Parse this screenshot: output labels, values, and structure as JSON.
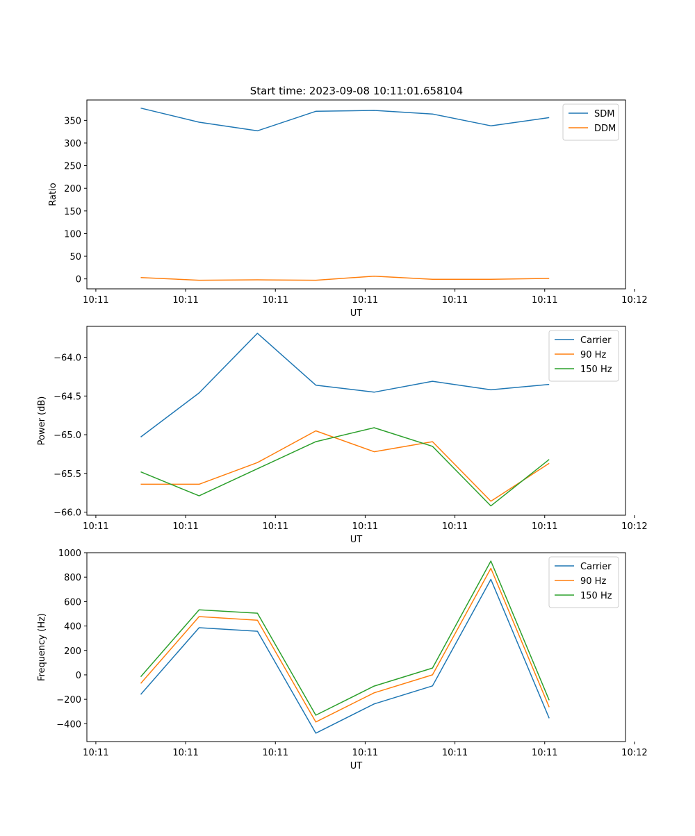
{
  "figure_title": "Start time: 2023-09-08 10:11:01.658104",
  "chart_data": [
    {
      "type": "line",
      "title": "Start time: 2023-09-08 10:11:01.658104",
      "xlabel": "UT",
      "ylabel": "Ratio",
      "xlim": [
        0,
        6
      ],
      "xticks": [
        0.1,
        1.1,
        2.1,
        3.1,
        4.1,
        5.1,
        6.1
      ],
      "xtick_labels": [
        "10:11",
        "10:11",
        "10:11",
        "10:11",
        "10:11",
        "10:11",
        "10:12"
      ],
      "ylim": [
        -22,
        395
      ],
      "yticks": [
        0,
        50,
        100,
        150,
        200,
        250,
        300,
        350
      ],
      "ytick_labels": [
        "0",
        "50",
        "100",
        "150",
        "200",
        "250",
        "300",
        "350"
      ],
      "legend": "top-right",
      "x": [
        0.6,
        1.25,
        1.9,
        2.55,
        3.2,
        3.85,
        4.5,
        5.15
      ],
      "series": [
        {
          "name": "SDM",
          "color": "#1f77b4",
          "values": [
            377,
            346,
            327,
            370,
            372,
            364,
            338,
            356
          ]
        },
        {
          "name": "DDM",
          "color": "#ff7f0e",
          "values": [
            3,
            -3,
            -2,
            -3,
            6,
            -1,
            -1,
            1
          ]
        }
      ]
    },
    {
      "type": "line",
      "title": "",
      "xlabel": "UT",
      "ylabel": "Power (dB)",
      "xlim": [
        0,
        6
      ],
      "xticks": [
        0.1,
        1.1,
        2.1,
        3.1,
        4.1,
        5.1,
        6.1
      ],
      "xtick_labels": [
        "10:11",
        "10:11",
        "10:11",
        "10:11",
        "10:11",
        "10:11",
        "10:12"
      ],
      "ylim": [
        -66.04,
        -63.6
      ],
      "yticks": [
        -66.0,
        -65.5,
        -65.0,
        -64.5,
        -64.0
      ],
      "ytick_labels": [
        "−66.0",
        "−65.5",
        "−65.0",
        "−64.5",
        "−64.0"
      ],
      "legend": "top-right",
      "x": [
        0.6,
        1.25,
        1.9,
        2.55,
        3.2,
        3.85,
        4.5,
        5.15
      ],
      "series": [
        {
          "name": "Carrier",
          "color": "#1f77b4",
          "values": [
            -65.03,
            -64.46,
            -63.69,
            -64.36,
            -64.45,
            -64.31,
            -64.42,
            -64.35
          ]
        },
        {
          "name": "90 Hz",
          "color": "#ff7f0e",
          "values": [
            -65.64,
            -65.64,
            -65.36,
            -64.95,
            -65.22,
            -65.09,
            -65.86,
            -65.37
          ]
        },
        {
          "name": "150 Hz",
          "color": "#2ca02c",
          "values": [
            -65.48,
            -65.79,
            -65.44,
            -65.09,
            -64.91,
            -65.15,
            -65.92,
            -65.32
          ]
        }
      ]
    },
    {
      "type": "line",
      "title": "",
      "xlabel": "UT",
      "ylabel": "Frequency (Hz)",
      "xlim": [
        0,
        6
      ],
      "xticks": [
        0.1,
        1.1,
        2.1,
        3.1,
        4.1,
        5.1,
        6.1
      ],
      "xtick_labels": [
        "10:11",
        "10:11",
        "10:11",
        "10:11",
        "10:11",
        "10:11",
        "10:12"
      ],
      "ylim": [
        -546,
        1000
      ],
      "yticks": [
        -400,
        -200,
        0,
        200,
        400,
        600,
        800,
        1000
      ],
      "ytick_labels": [
        "−400",
        "−200",
        "0",
        "200",
        "400",
        "600",
        "800",
        "1000"
      ],
      "legend": "top-right",
      "x": [
        0.6,
        1.25,
        1.9,
        2.55,
        3.2,
        3.85,
        4.5,
        5.15
      ],
      "series": [
        {
          "name": "Carrier",
          "color": "#1f77b4",
          "values": [
            -160,
            386,
            357,
            -477,
            -238,
            -90,
            782,
            -355
          ]
        },
        {
          "name": "90 Hz",
          "color": "#ff7f0e",
          "values": [
            -70,
            477,
            447,
            -386,
            -147,
            0,
            872,
            -264
          ]
        },
        {
          "name": "150 Hz",
          "color": "#2ca02c",
          "values": [
            -15,
            532,
            505,
            -330,
            -92,
            56,
            932,
            -207
          ]
        }
      ]
    }
  ]
}
